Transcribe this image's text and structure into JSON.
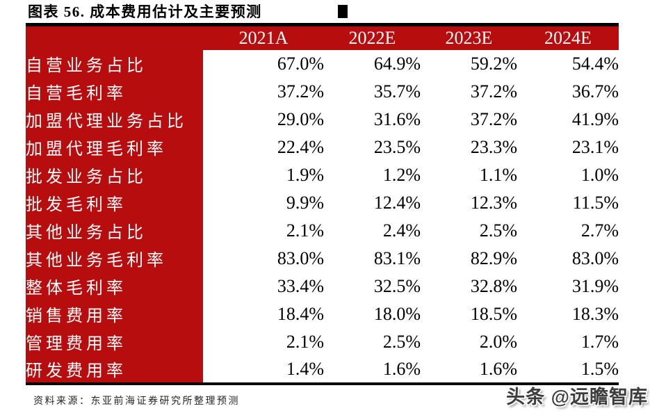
{
  "title": "图表 56. 成本费用估计及主要预测",
  "chart_data": {
    "type": "table",
    "figure_label": "图表 56.",
    "title": "成本费用估计及主要预测",
    "columns": [
      "2021A",
      "2022E",
      "2023E",
      "2024E"
    ],
    "rows": [
      {
        "label": "自营业务占比",
        "values": [
          "67.0%",
          "64.9%",
          "59.2%",
          "54.4%"
        ]
      },
      {
        "label": "自营毛利率",
        "values": [
          "37.2%",
          "35.7%",
          "37.2%",
          "36.7%"
        ]
      },
      {
        "label": "加盟代理业务占比",
        "values": [
          "29.0%",
          "31.6%",
          "37.2%",
          "41.9%"
        ]
      },
      {
        "label": "加盟代理毛利率",
        "values": [
          "22.4%",
          "23.5%",
          "23.3%",
          "23.1%"
        ]
      },
      {
        "label": "批发业务占比",
        "values": [
          "1.9%",
          "1.2%",
          "1.1%",
          "1.0%"
        ]
      },
      {
        "label": "批发毛利率",
        "values": [
          "9.9%",
          "12.4%",
          "12.3%",
          "11.5%"
        ]
      },
      {
        "label": "其他业务占比",
        "values": [
          "2.1%",
          "2.4%",
          "2.5%",
          "2.7%"
        ]
      },
      {
        "label": "其他业务毛利率",
        "values": [
          "83.0%",
          "83.1%",
          "82.9%",
          "83.0%"
        ]
      },
      {
        "label": "整体毛利率",
        "values": [
          "33.4%",
          "32.5%",
          "32.8%",
          "31.9%"
        ]
      },
      {
        "label": "销售费用率",
        "values": [
          "18.4%",
          "18.0%",
          "18.5%",
          "18.3%"
        ]
      },
      {
        "label": "管理费用率",
        "values": [
          "2.1%",
          "2.5%",
          "2.0%",
          "1.7%"
        ]
      },
      {
        "label": "研发费用率",
        "values": [
          "1.4%",
          "1.6%",
          "1.6%",
          "1.5%"
        ]
      }
    ]
  },
  "footer": {
    "source": "资料来源：东亚前海证券研究所整理预测"
  },
  "watermark": {
    "text": "头条 @远瞻智库"
  },
  "colors": {
    "table_red": "#B80D0E",
    "header_text": "#FFFFFF",
    "value_text": "#000000",
    "border_black": "#000000"
  }
}
